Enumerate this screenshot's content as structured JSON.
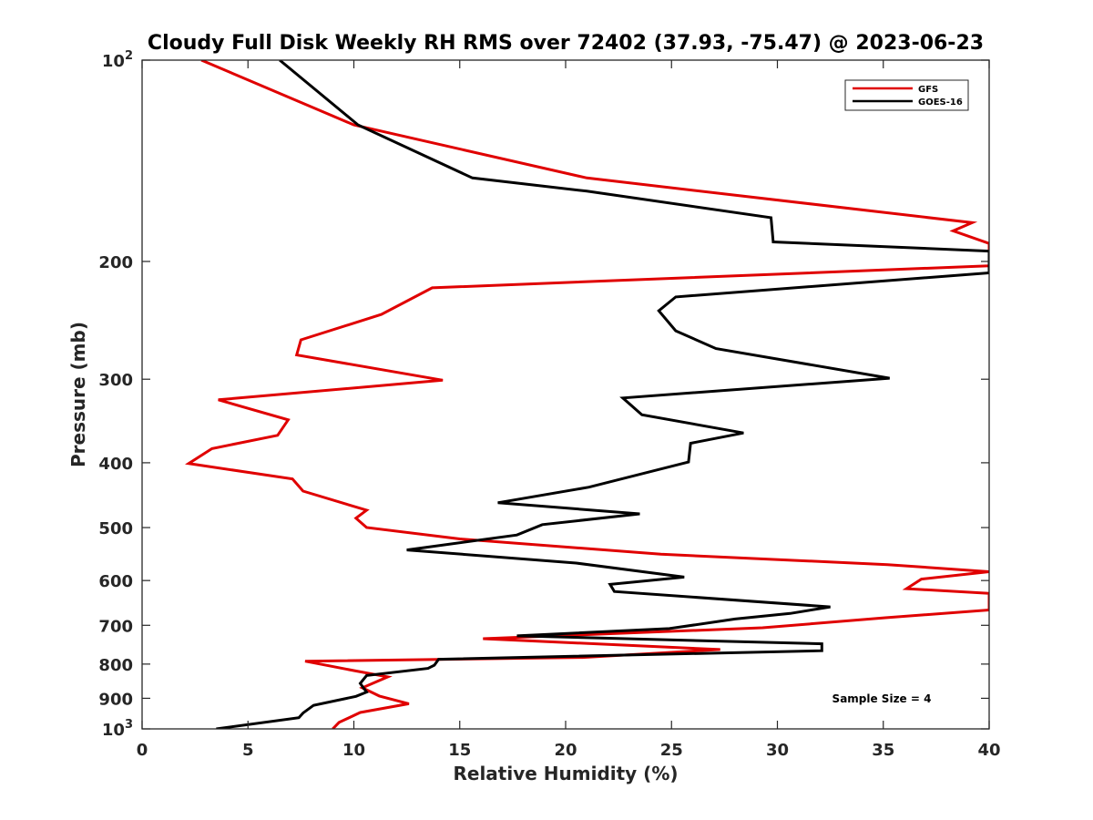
{
  "chart_data": {
    "type": "line",
    "title": "Cloudy Full Disk Weekly RH RMS over 72402 (37.93, -75.47) @ 2023-06-23",
    "xlabel": "Relative Humidity (%)",
    "ylabel": "Pressure (mb)",
    "xlim": [
      0,
      40
    ],
    "ylim": [
      100,
      1000
    ],
    "y_scale": "log",
    "y_reversed": true,
    "x_ticks": [
      "0",
      "5",
      "10",
      "15",
      "20",
      "25",
      "30",
      "35",
      "40"
    ],
    "y_ticks": [
      {
        "value": 100,
        "base": "10",
        "exp": "2"
      },
      {
        "value": 200,
        "label": "200"
      },
      {
        "value": 300,
        "label": "300"
      },
      {
        "value": 400,
        "label": "400"
      },
      {
        "value": 500,
        "label": "500"
      },
      {
        "value": 600,
        "label": "600"
      },
      {
        "value": 700,
        "label": "700"
      },
      {
        "value": 800,
        "label": "800"
      },
      {
        "value": 900,
        "label": "900"
      },
      {
        "value": 1000,
        "base": "10",
        "exp": "3"
      }
    ],
    "legend_position": "top-right",
    "annotation": "Sample Size = 4",
    "series": [
      {
        "name": "GFS",
        "color": "#e00000",
        "points": [
          [
            2.8,
            100
          ],
          [
            10.0,
            125
          ],
          [
            21.0,
            150
          ],
          [
            39.2,
            175
          ],
          [
            38.3,
            180
          ],
          [
            40,
            188
          ],
          [
            40,
            203
          ],
          [
            13.7,
            219
          ],
          [
            11.3,
            240
          ],
          [
            7.5,
            262
          ],
          [
            7.3,
            276
          ],
          [
            14.2,
            301
          ],
          [
            3.6,
            322
          ],
          [
            6.9,
            345
          ],
          [
            6.4,
            364
          ],
          [
            3.3,
            381
          ],
          [
            2.2,
            401
          ],
          [
            7.1,
            423
          ],
          [
            7.6,
            441
          ],
          [
            10.6,
            471
          ],
          [
            10.1,
            484
          ],
          [
            10.6,
            500
          ],
          [
            15.0,
            520
          ],
          [
            24.5,
            548
          ],
          [
            35.2,
            568
          ],
          [
            40,
            582
          ],
          [
            36.8,
            597
          ],
          [
            36.1,
            617
          ],
          [
            40,
            627
          ],
          [
            40,
            664
          ],
          [
            35.1,
            682
          ],
          [
            29.3,
            706
          ],
          [
            16.1,
            733
          ],
          [
            27.3,
            761
          ],
          [
            20.8,
            782
          ],
          [
            7.7,
            792
          ],
          [
            10.0,
            818
          ],
          [
            11.6,
            836
          ],
          [
            10.4,
            868
          ],
          [
            11.2,
            893
          ],
          [
            12.6,
            917
          ],
          [
            10.3,
            945
          ],
          [
            9.3,
            978
          ],
          [
            9.0,
            1000
          ]
        ]
      },
      {
        "name": "GOES-16",
        "color": "#000000",
        "points": [
          [
            6.5,
            100
          ],
          [
            10.2,
            125
          ],
          [
            15.6,
            150
          ],
          [
            21.0,
            157
          ],
          [
            29.7,
            172
          ],
          [
            29.8,
            187
          ],
          [
            40,
            193
          ],
          [
            40,
            208
          ],
          [
            25.2,
            226
          ],
          [
            24.4,
            237
          ],
          [
            25.2,
            254
          ],
          [
            27.1,
            270
          ],
          [
            35.3,
            299
          ],
          [
            22.7,
            320
          ],
          [
            23.6,
            339
          ],
          [
            28.4,
            361
          ],
          [
            25.9,
            374
          ],
          [
            25.8,
            399
          ],
          [
            21.1,
            435
          ],
          [
            16.8,
            459
          ],
          [
            23.5,
            477
          ],
          [
            18.9,
            495
          ],
          [
            17.7,
            513
          ],
          [
            12.5,
            540
          ],
          [
            20.5,
            565
          ],
          [
            25.6,
            593
          ],
          [
            22.1,
            608
          ],
          [
            22.3,
            623
          ],
          [
            32.5,
            657
          ],
          [
            30.6,
            672
          ],
          [
            28.0,
            685
          ],
          [
            24.9,
            708
          ],
          [
            17.7,
            726
          ],
          [
            32.1,
            746
          ],
          [
            32.1,
            764
          ],
          [
            14.0,
            787
          ],
          [
            13.8,
            803
          ],
          [
            13.5,
            812
          ],
          [
            10.6,
            832
          ],
          [
            10.3,
            855
          ],
          [
            10.6,
            881
          ],
          [
            10.1,
            894
          ],
          [
            8.1,
            922
          ],
          [
            7.6,
            947
          ],
          [
            7.4,
            962
          ],
          [
            3.5,
            1000
          ]
        ]
      }
    ]
  }
}
